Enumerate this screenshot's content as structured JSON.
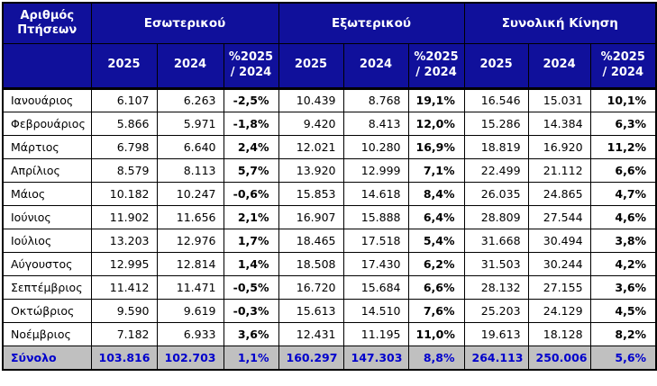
{
  "table": {
    "corner_label": "Αριθμός\nΠτήσεων",
    "groups": [
      {
        "label": "Εσωτερικού"
      },
      {
        "label": "Εξωτερικού"
      },
      {
        "label": "Συνολική Κίνηση"
      }
    ],
    "sub_headers": [
      "2025",
      "2024",
      "%2025\n/ 2024"
    ],
    "rows": [
      {
        "cells": [
          "Ιανουάριος",
          "6.107",
          "6.263",
          "-2,5%",
          "10.439",
          "8.768",
          "19,1%",
          "16.546",
          "15.031",
          "10,1%"
        ]
      },
      {
        "cells": [
          "Φεβρουάριος",
          "5.866",
          "5.971",
          "-1,8%",
          "9.420",
          "8.413",
          "12,0%",
          "15.286",
          "14.384",
          "6,3%"
        ]
      },
      {
        "cells": [
          "Μάρτιος",
          "6.798",
          "6.640",
          "2,4%",
          "12.021",
          "10.280",
          "16,9%",
          "18.819",
          "16.920",
          "11,2%"
        ]
      },
      {
        "cells": [
          "Απρίλιος",
          "8.579",
          "8.113",
          "5,7%",
          "13.920",
          "12.999",
          "7,1%",
          "22.499",
          "21.112",
          "6,6%"
        ]
      },
      {
        "cells": [
          "Μάιος",
          "10.182",
          "10.247",
          "-0,6%",
          "15.853",
          "14.618",
          "8,4%",
          "26.035",
          "24.865",
          "4,7%"
        ]
      },
      {
        "cells": [
          "Ιούνιος",
          "11.902",
          "11.656",
          "2,1%",
          "16.907",
          "15.888",
          "6,4%",
          "28.809",
          "27.544",
          "4,6%"
        ]
      },
      {
        "cells": [
          "Ιούλιος",
          "13.203",
          "12.976",
          "1,7%",
          "18.465",
          "17.518",
          "5,4%",
          "31.668",
          "30.494",
          "3,8%"
        ]
      },
      {
        "cells": [
          "Αύγουστος",
          "12.995",
          "12.814",
          "1,4%",
          "18.508",
          "17.430",
          "6,2%",
          "31.503",
          "30.244",
          "4,2%"
        ]
      },
      {
        "cells": [
          "Σεπτέμβριος",
          "11.412",
          "11.471",
          "-0,5%",
          "16.720",
          "15.684",
          "6,6%",
          "28.132",
          "27.155",
          "3,6%"
        ]
      },
      {
        "cells": [
          "Οκτώβριος",
          "9.590",
          "9.619",
          "-0,3%",
          "15.613",
          "14.510",
          "7,6%",
          "25.203",
          "24.129",
          "4,5%"
        ]
      },
      {
        "cells": [
          "Νοέμβριος",
          "7.182",
          "6.933",
          "3,6%",
          "12.431",
          "11.195",
          "11,0%",
          "19.613",
          "18.128",
          "8,2%"
        ]
      }
    ],
    "total_row": {
      "cells": [
        "Σύνολο",
        "103.816",
        "102.703",
        "1,1%",
        "160.297",
        "147.303",
        "8,8%",
        "264.113",
        "250.006",
        "5,6%"
      ]
    }
  },
  "colors": {
    "header_bg": "#10109b",
    "header_text": "#ffffff",
    "border": "#000000",
    "total_bg": "#c0c0c0",
    "total_text": "#0000cc",
    "body_text": "#000000"
  }
}
